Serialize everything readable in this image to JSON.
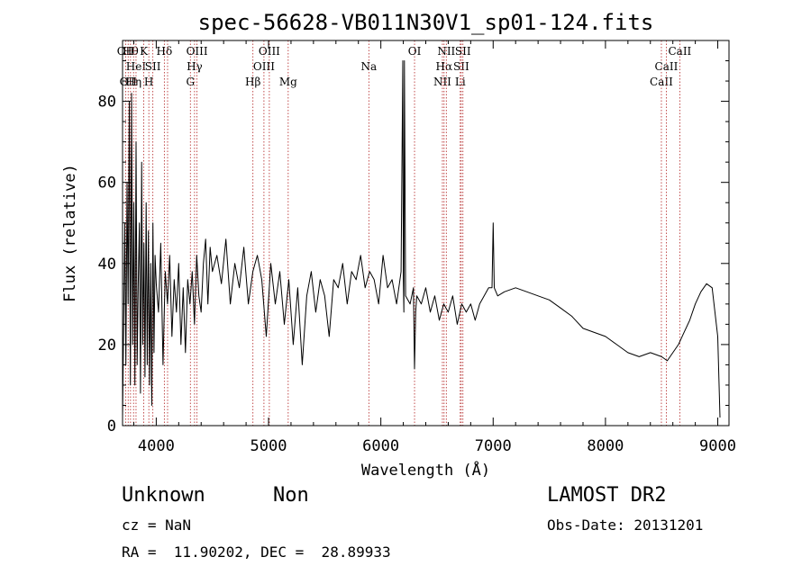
{
  "chart_data": {
    "type": "line",
    "title": "spec-56628-VB011N30V1_sp01-124.fits",
    "xlabel": "Wavelength (Å)",
    "ylabel": "Flux (relative)",
    "xlim": [
      3700,
      9100
    ],
    "ylim": [
      0,
      95
    ],
    "x_ticks": [
      4000,
      5000,
      6000,
      7000,
      8000,
      9000
    ],
    "y_ticks": [
      0,
      20,
      40,
      60,
      80
    ],
    "x_tick_labels": [
      "4000",
      "5000",
      "6000",
      "7000",
      "8000",
      "9000"
    ],
    "y_tick_labels": [
      "0",
      "20",
      "40",
      "60",
      "80"
    ],
    "series": [
      {
        "color": "#000000",
        "x": [
          3700,
          3710,
          3720,
          3730,
          3740,
          3750,
          3760,
          3770,
          3780,
          3790,
          3800,
          3810,
          3820,
          3830,
          3840,
          3850,
          3860,
          3870,
          3880,
          3890,
          3900,
          3910,
          3920,
          3930,
          3940,
          3950,
          3960,
          3970,
          3980,
          3990,
          4000,
          4020,
          4040,
          4060,
          4080,
          4100,
          4120,
          4140,
          4160,
          4180,
          4200,
          4220,
          4240,
          4260,
          4280,
          4300,
          4320,
          4340,
          4360,
          4380,
          4400,
          4420,
          4440,
          4460,
          4480,
          4500,
          4540,
          4580,
          4620,
          4660,
          4700,
          4740,
          4780,
          4820,
          4860,
          4900,
          4940,
          4980,
          5020,
          5060,
          5100,
          5140,
          5180,
          5220,
          5260,
          5300,
          5340,
          5380,
          5420,
          5460,
          5500,
          5540,
          5580,
          5620,
          5660,
          5700,
          5740,
          5780,
          5820,
          5860,
          5900,
          5940,
          5980,
          6020,
          6060,
          6100,
          6140,
          6180,
          6195,
          6200,
          6205,
          6210,
          6220,
          6260,
          6290,
          6300,
          6310,
          6320,
          6360,
          6400,
          6440,
          6480,
          6520,
          6560,
          6600,
          6640,
          6680,
          6720,
          6760,
          6800,
          6840,
          6880,
          6920,
          6960,
          6990,
          7000,
          7010,
          7040,
          7100,
          7200,
          7300,
          7400,
          7500,
          7600,
          7700,
          7800,
          7900,
          8000,
          8100,
          8200,
          8300,
          8400,
          8500,
          8550,
          8600,
          8650,
          8700,
          8750,
          8800,
          8850,
          8900,
          8950,
          9000,
          9020
        ],
        "y": [
          2,
          25,
          50,
          15,
          60,
          30,
          80,
          10,
          82,
          20,
          55,
          10,
          70,
          15,
          35,
          50,
          8,
          65,
          20,
          45,
          12,
          55,
          15,
          48,
          10,
          40,
          5,
          50,
          18,
          42,
          35,
          28,
          45,
          15,
          38,
          30,
          42,
          22,
          36,
          28,
          40,
          20,
          34,
          18,
          36,
          30,
          38,
          25,
          42,
          32,
          28,
          40,
          46,
          30,
          44,
          38,
          42,
          35,
          46,
          30,
          40,
          34,
          44,
          30,
          38,
          42,
          36,
          22,
          40,
          30,
          38,
          25,
          36,
          20,
          34,
          15,
          32,
          38,
          28,
          36,
          32,
          22,
          36,
          34,
          40,
          30,
          38,
          36,
          42,
          34,
          38,
          36,
          30,
          42,
          34,
          36,
          30,
          38,
          90,
          36,
          28,
          90,
          32,
          30,
          34,
          14,
          28,
          32,
          30,
          34,
          28,
          32,
          26,
          30,
          28,
          32,
          25,
          30,
          28,
          30,
          26,
          30,
          32,
          34,
          34,
          50,
          34,
          32,
          33,
          34,
          33,
          32,
          31,
          29,
          27,
          24,
          23,
          22,
          20,
          18,
          17,
          18,
          17,
          16,
          18,
          20,
          23,
          26,
          30,
          33,
          35,
          34,
          22,
          2
        ]
      }
    ],
    "lines": [
      {
        "x": 3727,
        "top": "OII",
        "mid": "",
        "bot": ""
      },
      {
        "x": 3750,
        "top": "",
        "mid": "",
        "bot": "OII"
      },
      {
        "x": 3771,
        "top": "Hθ",
        "mid": "",
        "bot": ""
      },
      {
        "x": 3798,
        "top": "",
        "mid": "",
        "bot": "Hη"
      },
      {
        "x": 3820,
        "top": "",
        "mid": "HeI",
        "bot": ""
      },
      {
        "x": 3889,
        "top": "K",
        "mid": "",
        "bot": ""
      },
      {
        "x": 3934,
        "top": "",
        "mid": "",
        "bot": "H"
      },
      {
        "x": 3970,
        "top": "",
        "mid": "SII",
        "bot": ""
      },
      {
        "x": 4072,
        "top": "Hδ",
        "mid": "",
        "bot": ""
      },
      {
        "x": 4101,
        "top": "",
        "mid": "",
        "bot": ""
      },
      {
        "x": 4304,
        "top": "",
        "mid": "",
        "bot": "G"
      },
      {
        "x": 4341,
        "top": "",
        "mid": "Hγ",
        "bot": ""
      },
      {
        "x": 4363,
        "top": "OIII",
        "mid": "",
        "bot": ""
      },
      {
        "x": 4861,
        "top": "",
        "mid": "",
        "bot": "Hβ"
      },
      {
        "x": 4959,
        "top": "",
        "mid": "OIII",
        "bot": ""
      },
      {
        "x": 5007,
        "top": "OIII",
        "mid": "",
        "bot": ""
      },
      {
        "x": 5175,
        "top": "",
        "mid": "",
        "bot": "Mg"
      },
      {
        "x": 5893,
        "top": "",
        "mid": "Na",
        "bot": ""
      },
      {
        "x": 6300,
        "top": "OI",
        "mid": "",
        "bot": ""
      },
      {
        "x": 6548,
        "top": "",
        "mid": "",
        "bot": "NII"
      },
      {
        "x": 6563,
        "top": "",
        "mid": "Hα",
        "bot": ""
      },
      {
        "x": 6583,
        "top": "NII",
        "mid": "",
        "bot": ""
      },
      {
        "x": 6707,
        "top": "",
        "mid": "",
        "bot": "Li"
      },
      {
        "x": 6716,
        "top": "",
        "mid": "SII",
        "bot": ""
      },
      {
        "x": 6731,
        "top": "SII",
        "mid": "",
        "bot": ""
      },
      {
        "x": 8498,
        "top": "",
        "mid": "",
        "bot": "CaII"
      },
      {
        "x": 8542,
        "top": "",
        "mid": "CaII",
        "bot": ""
      },
      {
        "x": 8662,
        "top": "CaII",
        "mid": "",
        "bot": ""
      }
    ]
  },
  "info": {
    "class": "Unknown",
    "subclass": "Non",
    "survey": "LAMOST DR2",
    "cz": "cz = NaN",
    "obs_date": "Obs-Date: 20131201",
    "coords": "RA =  11.90202, DEC =  28.89933"
  }
}
